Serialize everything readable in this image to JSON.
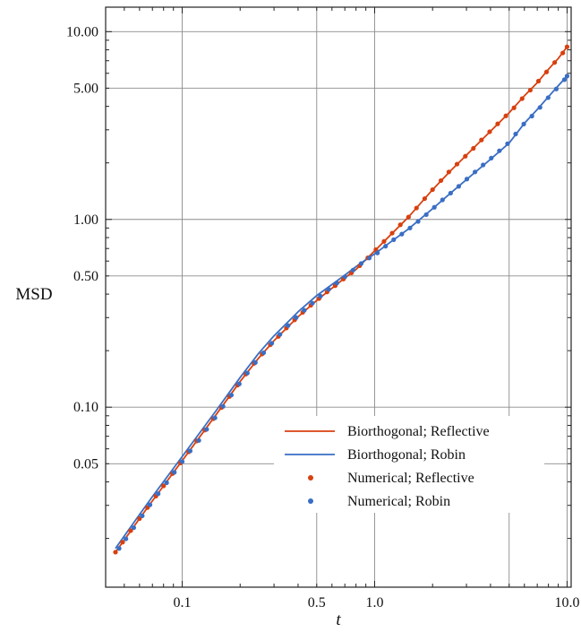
{
  "chart_data": {
    "type": "line",
    "title": "",
    "xlabel": "t",
    "ylabel": "MSD",
    "xscale": "log",
    "yscale": "log",
    "xlim": [
      0.04,
      10.5
    ],
    "ylim": [
      0.011,
      13.5
    ],
    "grid": true,
    "legend_position": "lower-right",
    "x_ticks": [
      {
        "value": 0.1,
        "label": "0.1"
      },
      {
        "value": 0.5,
        "label": "0.5"
      },
      {
        "value": 1.0,
        "label": "1.0"
      },
      {
        "value": 10.0,
        "label": "10.0"
      }
    ],
    "y_ticks": [
      {
        "value": 0.05,
        "label": "0.05"
      },
      {
        "value": 0.1,
        "label": "0.10"
      },
      {
        "value": 0.5,
        "label": "0.50"
      },
      {
        "value": 1.0,
        "label": "1.00"
      },
      {
        "value": 5.0,
        "label": "5.00"
      },
      {
        "value": 10.0,
        "label": "10.00"
      }
    ],
    "x_gridlines": [
      0.1,
      0.5,
      1.0,
      5.0,
      10.0
    ],
    "y_gridlines": [
      0.05,
      0.1,
      0.5,
      1.0,
      5.0,
      10.0
    ],
    "series": [
      {
        "name": "Biorthogonal; Reflective",
        "kind": "line",
        "color": "#d8400f",
        "points": [
          [
            0.045,
            0.0169
          ],
          [
            0.05,
            0.0196
          ],
          [
            0.06,
            0.0255
          ],
          [
            0.07,
            0.0317
          ],
          [
            0.08,
            0.0381
          ],
          [
            0.09,
            0.0449
          ],
          [
            0.1,
            0.0519
          ],
          [
            0.12,
            0.0669
          ],
          [
            0.15,
            0.0912
          ],
          [
            0.2,
            0.137
          ],
          [
            0.25,
            0.183
          ],
          [
            0.3,
            0.226
          ],
          [
            0.4,
            0.303
          ],
          [
            0.5,
            0.37
          ],
          [
            0.6,
            0.43
          ],
          [
            0.7,
            0.488
          ],
          [
            0.8,
            0.541
          ],
          [
            0.9,
            0.611
          ],
          [
            1.0,
            0.68
          ],
          [
            1.2,
            0.82
          ],
          [
            1.5,
            1.03
          ],
          [
            2.0,
            1.44
          ],
          [
            2.5,
            1.83
          ],
          [
            3.0,
            2.2
          ],
          [
            4.0,
            2.95
          ],
          [
            5.0,
            3.7
          ],
          [
            6.0,
            4.55
          ],
          [
            7.0,
            5.35
          ],
          [
            8.0,
            6.3
          ],
          [
            9.0,
            7.2
          ],
          [
            10.0,
            8.3
          ]
        ]
      },
      {
        "name": "Biorthogonal; Robin",
        "kind": "line",
        "color": "#3a6ec4",
        "points": [
          [
            0.045,
            0.0177
          ],
          [
            0.05,
            0.0206
          ],
          [
            0.06,
            0.0268
          ],
          [
            0.07,
            0.0334
          ],
          [
            0.08,
            0.0401
          ],
          [
            0.09,
            0.0472
          ],
          [
            0.1,
            0.0546
          ],
          [
            0.12,
            0.0703
          ],
          [
            0.15,
            0.0958
          ],
          [
            0.2,
            0.144
          ],
          [
            0.25,
            0.194
          ],
          [
            0.3,
            0.24
          ],
          [
            0.4,
            0.322
          ],
          [
            0.5,
            0.393
          ],
          [
            0.6,
            0.45
          ],
          [
            0.7,
            0.505
          ],
          [
            0.8,
            0.56
          ],
          [
            0.9,
            0.61
          ],
          [
            1.0,
            0.655
          ],
          [
            1.2,
            0.753
          ],
          [
            1.5,
            0.89
          ],
          [
            2.0,
            1.14
          ],
          [
            2.5,
            1.39
          ],
          [
            3.0,
            1.63
          ],
          [
            4.0,
            2.09
          ],
          [
            5.0,
            2.55
          ],
          [
            6.0,
            3.25
          ],
          [
            7.0,
            3.85
          ],
          [
            8.0,
            4.5
          ],
          [
            9.0,
            5.15
          ],
          [
            10.0,
            5.8
          ]
        ]
      },
      {
        "name": "Numerical; Reflective",
        "kind": "scatter",
        "color": "#d8400f",
        "points": [
          [
            0.045,
            0.0169
          ],
          [
            0.049,
            0.0191
          ],
          [
            0.054,
            0.022
          ],
          [
            0.06,
            0.0255
          ],
          [
            0.066,
            0.0292
          ],
          [
            0.073,
            0.0336
          ],
          [
            0.08,
            0.0381
          ],
          [
            0.089,
            0.0443
          ],
          [
            0.098,
            0.0505
          ],
          [
            0.108,
            0.0578
          ],
          [
            0.119,
            0.0661
          ],
          [
            0.131,
            0.0755
          ],
          [
            0.145,
            0.0868
          ],
          [
            0.16,
            0.0995
          ],
          [
            0.176,
            0.114
          ],
          [
            0.194,
            0.131
          ],
          [
            0.214,
            0.15
          ],
          [
            0.236,
            0.171
          ],
          [
            0.26,
            0.192
          ],
          [
            0.287,
            0.215
          ],
          [
            0.316,
            0.238
          ],
          [
            0.348,
            0.264
          ],
          [
            0.384,
            0.292
          ],
          [
            0.423,
            0.32
          ],
          [
            0.466,
            0.349
          ],
          [
            0.514,
            0.379
          ],
          [
            0.566,
            0.411
          ],
          [
            0.624,
            0.444
          ],
          [
            0.688,
            0.481
          ],
          [
            0.758,
            0.519
          ],
          [
            0.836,
            0.567
          ],
          [
            0.921,
            0.624
          ],
          [
            1.015,
            0.69
          ],
          [
            1.119,
            0.764
          ],
          [
            1.233,
            0.845
          ],
          [
            1.36,
            0.936
          ],
          [
            1.5,
            1.03
          ],
          [
            1.65,
            1.15
          ],
          [
            1.82,
            1.29
          ],
          [
            2.0,
            1.44
          ],
          [
            2.21,
            1.61
          ],
          [
            2.43,
            1.79
          ],
          [
            2.68,
            1.97
          ],
          [
            2.96,
            2.17
          ],
          [
            3.26,
            2.39
          ],
          [
            3.59,
            2.65
          ],
          [
            3.96,
            2.93
          ],
          [
            4.36,
            3.23
          ],
          [
            4.81,
            3.56
          ],
          [
            5.3,
            3.93
          ],
          [
            5.84,
            4.4
          ],
          [
            6.44,
            4.88
          ],
          [
            7.1,
            5.45
          ],
          [
            7.82,
            6.1
          ],
          [
            8.62,
            6.85
          ],
          [
            9.5,
            7.7
          ],
          [
            10.0,
            8.3
          ]
        ]
      },
      {
        "name": "Numerical; Robin",
        "kind": "scatter",
        "color": "#3a6ec4",
        "points": [
          [
            0.047,
            0.0177
          ],
          [
            0.051,
            0.0199
          ],
          [
            0.056,
            0.0228
          ],
          [
            0.062,
            0.0264
          ],
          [
            0.068,
            0.0302
          ],
          [
            0.075,
            0.0346
          ],
          [
            0.083,
            0.0396
          ],
          [
            0.091,
            0.045
          ],
          [
            0.1,
            0.0513
          ],
          [
            0.11,
            0.0585
          ],
          [
            0.122,
            0.0665
          ],
          [
            0.134,
            0.0762
          ],
          [
            0.148,
            0.0877
          ],
          [
            0.163,
            0.101
          ],
          [
            0.18,
            0.116
          ],
          [
            0.198,
            0.133
          ],
          [
            0.218,
            0.152
          ],
          [
            0.24,
            0.173
          ],
          [
            0.265,
            0.195
          ],
          [
            0.292,
            0.219
          ],
          [
            0.322,
            0.244
          ],
          [
            0.355,
            0.272
          ],
          [
            0.391,
            0.3
          ],
          [
            0.431,
            0.328
          ],
          [
            0.475,
            0.358
          ],
          [
            0.523,
            0.39
          ],
          [
            0.577,
            0.424
          ],
          [
            0.636,
            0.458
          ],
          [
            0.701,
            0.495
          ],
          [
            0.772,
            0.537
          ],
          [
            0.851,
            0.582
          ],
          [
            0.938,
            0.623
          ],
          [
            1.034,
            0.663
          ],
          [
            1.14,
            0.72
          ],
          [
            1.256,
            0.78
          ],
          [
            1.384,
            0.835
          ],
          [
            1.526,
            0.9
          ],
          [
            1.682,
            0.975
          ],
          [
            1.854,
            1.06
          ],
          [
            2.043,
            1.16
          ],
          [
            2.252,
            1.27
          ],
          [
            2.482,
            1.38
          ],
          [
            2.735,
            1.5
          ],
          [
            3.015,
            1.64
          ],
          [
            3.323,
            1.79
          ],
          [
            3.662,
            1.95
          ],
          [
            4.036,
            2.12
          ],
          [
            4.449,
            2.32
          ],
          [
            4.903,
            2.53
          ],
          [
            5.404,
            2.85
          ],
          [
            5.956,
            3.22
          ],
          [
            6.564,
            3.55
          ],
          [
            7.235,
            3.95
          ],
          [
            7.974,
            4.45
          ],
          [
            8.788,
            4.95
          ],
          [
            9.686,
            5.55
          ],
          [
            10.0,
            5.8
          ]
        ]
      }
    ]
  }
}
